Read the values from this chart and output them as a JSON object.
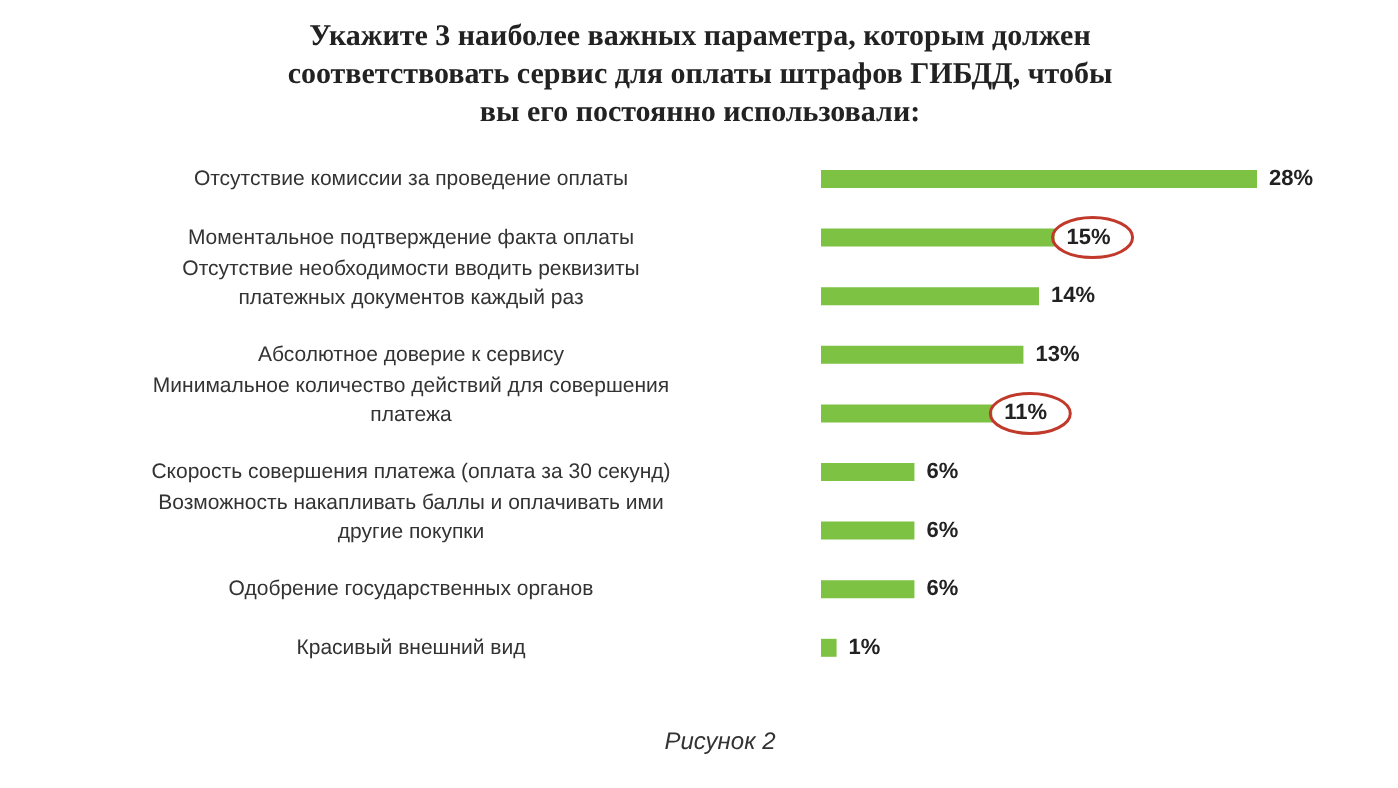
{
  "chart_data": {
    "type": "bar",
    "orientation": "horizontal",
    "title": "Укажите 3 наиболее важных параметра, которым должен соответствовать сервис для оплаты штрафов ГИБДД, чтобы вы его постоянно использовали:",
    "categories": [
      "Отсутствие комиссии за проведение оплаты",
      "Моментальное подтверждение факта оплаты",
      "Отсутствие необходимости вводить реквизиты платежных документов каждый раз",
      "Абсолютное доверие к сервису",
      "Минимальное количество действий для совершения платежа",
      "Скорость совершения платежа (оплата за 30 секунд)",
      "Возможность накапливать баллы и оплачивать ими другие покупки",
      "Одобрение государственных органов",
      "Красивый внешний вид"
    ],
    "values": [
      28,
      15,
      14,
      13,
      11,
      6,
      6,
      6,
      1
    ],
    "value_labels": [
      "28%",
      "15%",
      "14%",
      "13%",
      "11%",
      "6%",
      "6%",
      "6%",
      "1%"
    ],
    "color": "#7dc242",
    "annotations": [
      "Рисунок 2"
    ]
  }
}
